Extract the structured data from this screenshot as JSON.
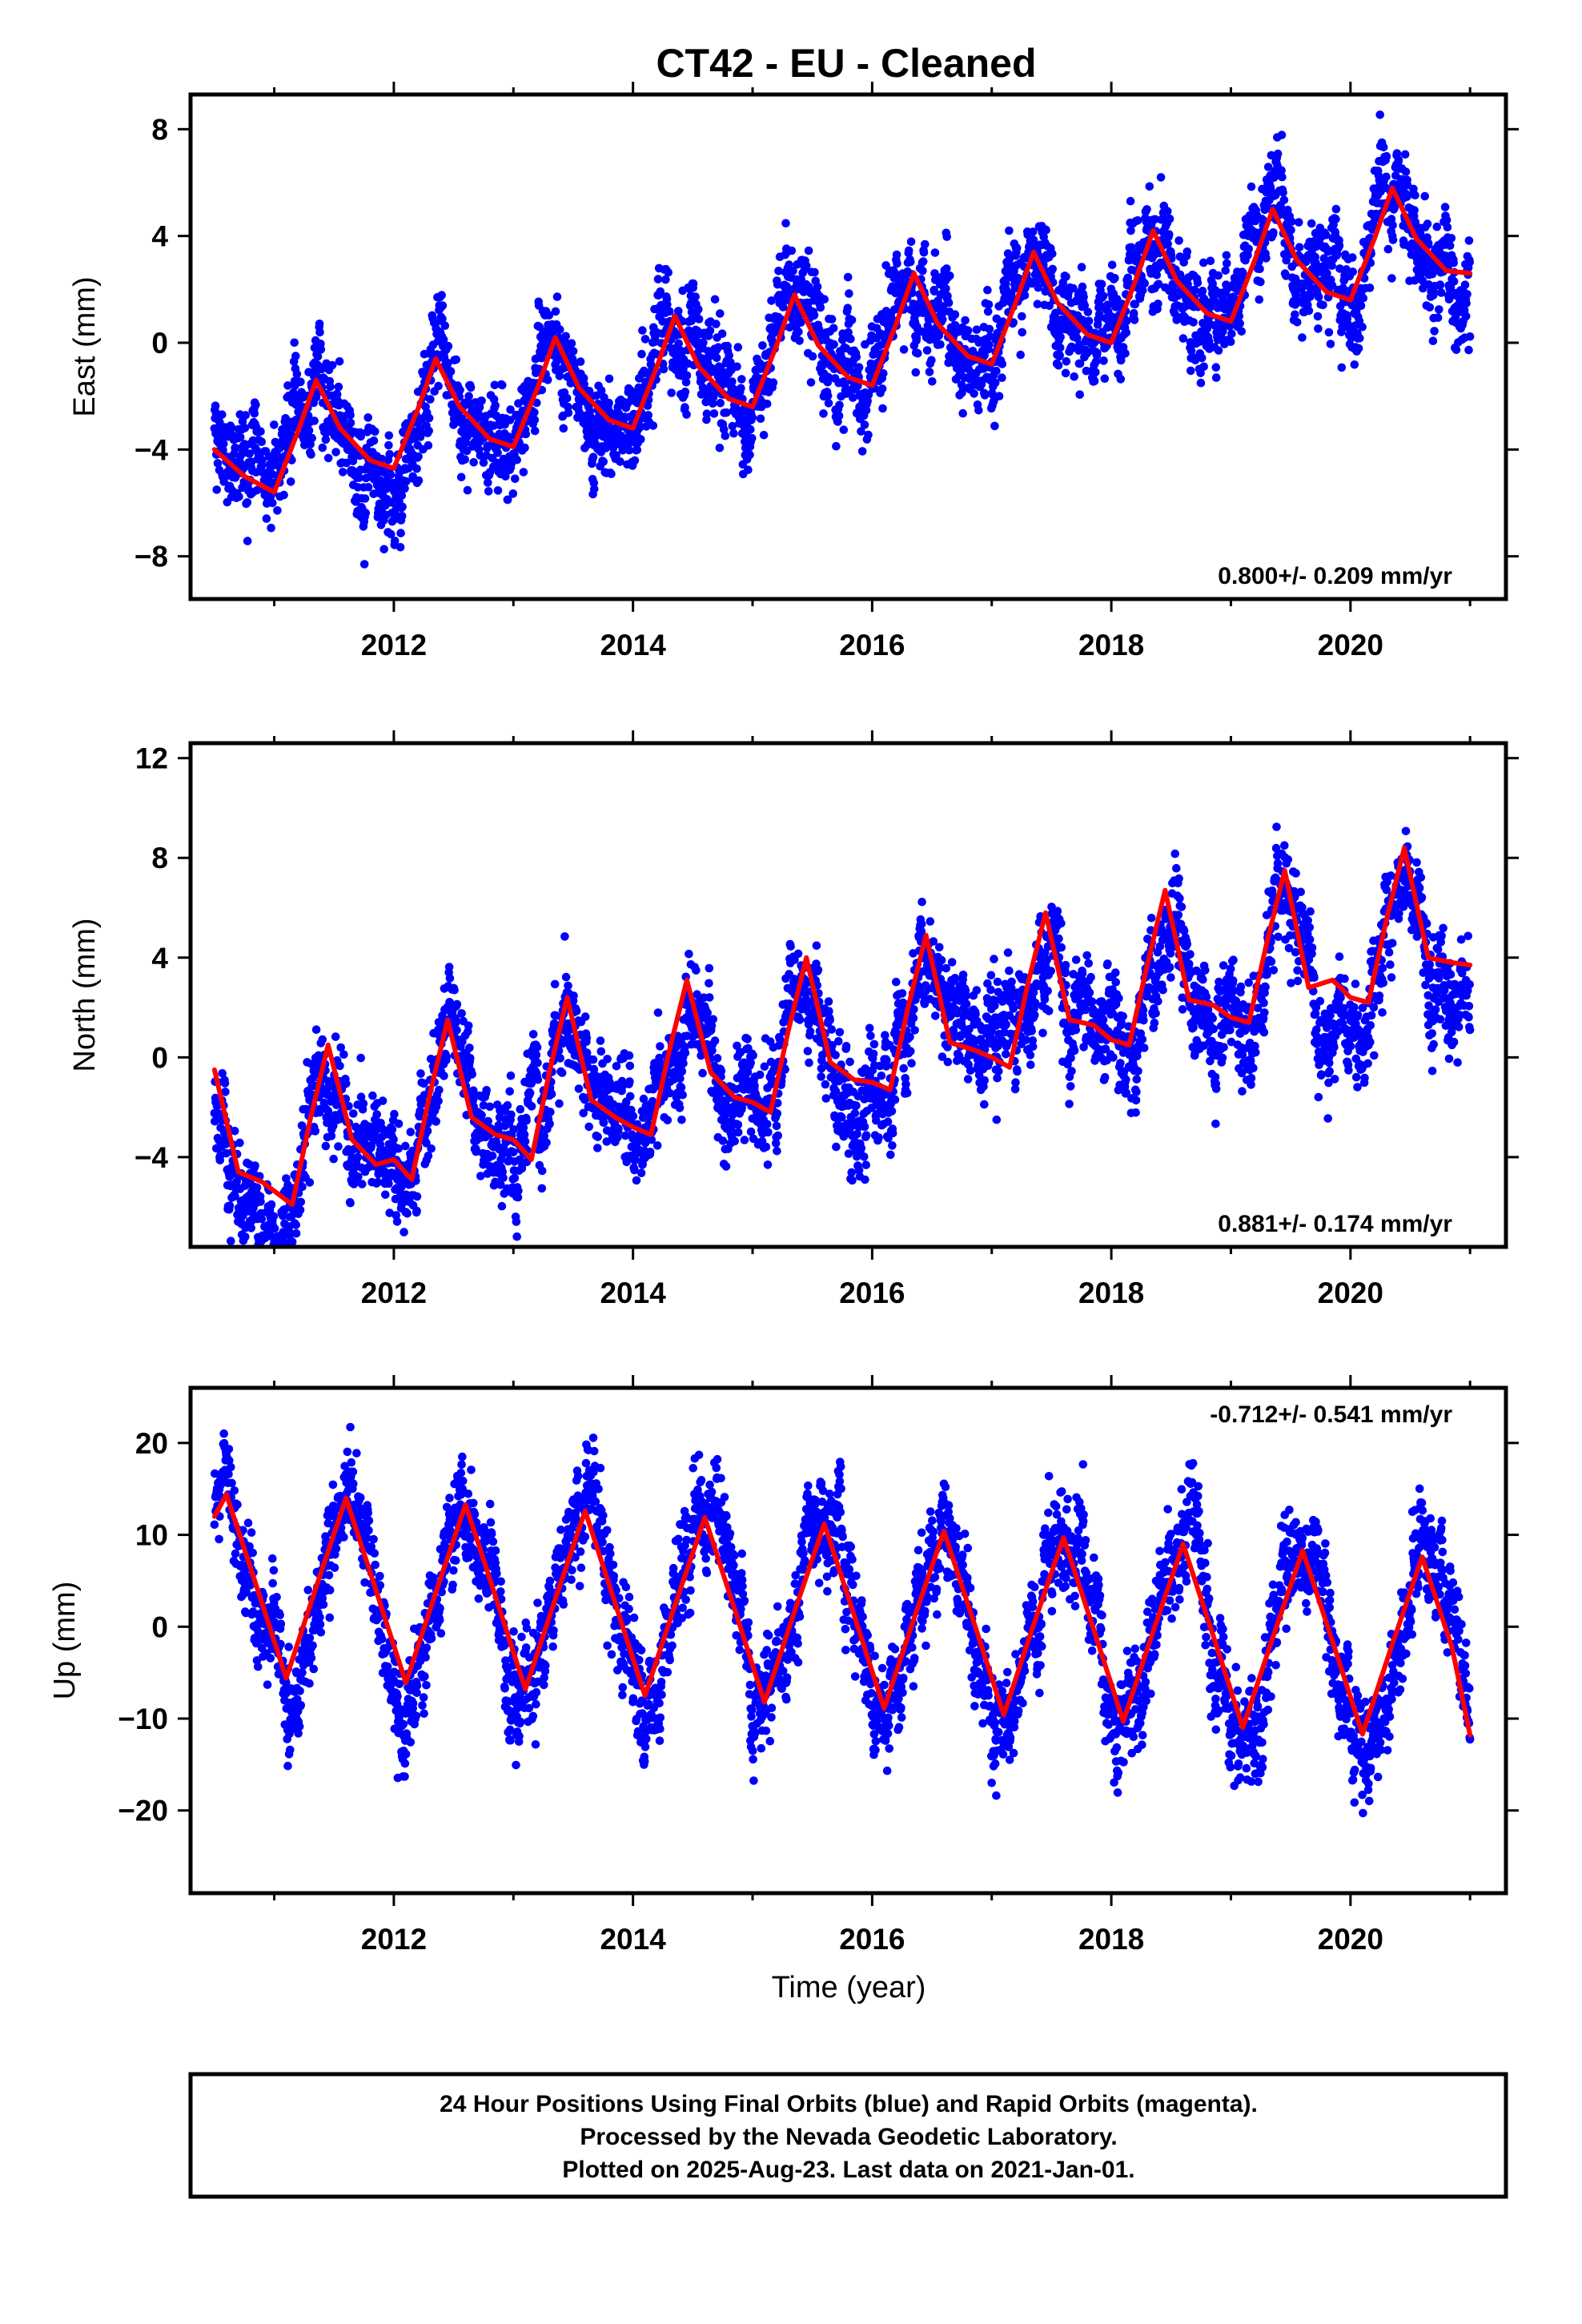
{
  "title": "CT42  - EU - Cleaned",
  "xlabel": "Time (year)",
  "footer": {
    "line1": "24 Hour Positions Using Final Orbits (blue) and Rapid Orbits (magenta).",
    "line2": "Processed by the Nevada Geodetic Laboratory.",
    "line3": "Plotted on 2025-Aug-23. Last data on 2021-Jan-01."
  },
  "colors": {
    "points": "#0000ff",
    "fit": "#ff0000",
    "frame": "#000000"
  },
  "chart_data": [
    {
      "type": "scatter",
      "ylabel": "East (mm)",
      "rate_label": "0.800+/- 0.209 mm/yr",
      "rate_position": "bottom-right",
      "xlim": [
        2010.3,
        2021.3
      ],
      "ylim": [
        -9.6,
        9.3
      ],
      "xticks": [
        2012,
        2014,
        2016,
        2018,
        2020
      ],
      "yticks": [
        -8,
        -4,
        0,
        4,
        8
      ],
      "ytick_labels": [
        "−8",
        "−4",
        "0",
        "4",
        "8"
      ],
      "grid": false,
      "series": [
        {
          "kind": "daily positions (points)",
          "model": {
            "x0": 2010.5,
            "x1": 2021.0,
            "offset": -4.2,
            "trend": 0.8,
            "ann_amp": 1.8,
            "ann_peak": 0.35,
            "semi_amp": 0.6,
            "semi_peak": 0.3,
            "noise": 1.0
          }
        },
        {
          "kind": "fit (line)",
          "x": [
            2010.5,
            2010.75,
            2011.0,
            2011.2,
            2011.35,
            2011.55,
            2011.8,
            2012.0,
            2012.2,
            2012.35,
            2012.55,
            2012.8,
            2013.0,
            2013.2,
            2013.35,
            2013.55,
            2013.8,
            2014.0,
            2014.2,
            2014.35,
            2014.55,
            2014.8,
            2015.0,
            2015.2,
            2015.35,
            2015.55,
            2015.8,
            2016.0,
            2016.2,
            2016.35,
            2016.55,
            2016.8,
            2017.0,
            2017.2,
            2017.35,
            2017.55,
            2017.8,
            2018.0,
            2018.2,
            2018.35,
            2018.55,
            2018.8,
            2019.0,
            2019.2,
            2019.35,
            2019.55,
            2019.8,
            2020.0,
            2020.2,
            2020.35,
            2020.55,
            2020.8,
            2021.0
          ],
          "y": [
            -4.0,
            -5.0,
            -5.6,
            -3.3,
            -1.4,
            -3.2,
            -4.4,
            -4.7,
            -2.5,
            -0.6,
            -2.4,
            -3.6,
            -3.9,
            -1.7,
            0.2,
            -1.7,
            -2.9,
            -3.2,
            -0.9,
            1.0,
            -0.9,
            -2.1,
            -2.4,
            -0.1,
            1.8,
            -0.1,
            -1.3,
            -1.6,
            0.7,
            2.6,
            0.7,
            -0.5,
            -0.8,
            1.5,
            3.4,
            1.5,
            0.3,
            0.0,
            2.3,
            4.2,
            2.3,
            1.1,
            0.8,
            3.1,
            5.0,
            3.1,
            1.9,
            1.6,
            3.9,
            5.8,
            3.9,
            2.7,
            2.6
          ]
        }
      ]
    },
    {
      "type": "scatter",
      "ylabel": "North (mm)",
      "rate_label": "0.881+/- 0.174 mm/yr",
      "rate_position": "bottom-right",
      "xlim": [
        2010.3,
        2021.3
      ],
      "ylim": [
        -7.6,
        12.6
      ],
      "xticks": [
        2012,
        2014,
        2016,
        2018,
        2020
      ],
      "yticks": [
        -4,
        0,
        4,
        8,
        12
      ],
      "ytick_labels": [
        "−4",
        "0",
        "4",
        "8",
        "12"
      ],
      "grid": false,
      "series": [
        {
          "kind": "daily positions (points)",
          "model": {
            "x0": 2010.5,
            "x1": 2021.0,
            "offset": -4.4,
            "trend": 0.88,
            "ann_amp": 2.5,
            "ann_peak": 0.47,
            "semi_amp": 0.7,
            "semi_peak": 0.45,
            "noise": 1.1
          }
        },
        {
          "kind": "fit (line)",
          "x": [
            2010.5,
            2010.7,
            2010.9,
            2011.15,
            2011.3,
            2011.45,
            2011.65,
            2011.85,
            2012.0,
            2012.15,
            2012.3,
            2012.45,
            2012.65,
            2012.85,
            2013.0,
            2013.15,
            2013.3,
            2013.45,
            2013.65,
            2013.85,
            2014.0,
            2014.15,
            2014.3,
            2014.45,
            2014.65,
            2014.85,
            2015.0,
            2015.15,
            2015.3,
            2015.45,
            2015.65,
            2015.85,
            2016.0,
            2016.15,
            2016.3,
            2016.45,
            2016.65,
            2016.85,
            2017.0,
            2017.15,
            2017.3,
            2017.45,
            2017.65,
            2017.85,
            2018.0,
            2018.15,
            2018.3,
            2018.45,
            2018.65,
            2018.85,
            2019.0,
            2019.15,
            2019.3,
            2019.45,
            2019.65,
            2019.85,
            2020.0,
            2020.15,
            2020.3,
            2020.45,
            2020.65,
            2020.85,
            2021.0
          ],
          "y": [
            -0.5,
            -4.6,
            -5.0,
            -5.9,
            -2.5,
            0.5,
            -3.3,
            -4.3,
            -4.1,
            -4.9,
            -1.5,
            1.5,
            -2.4,
            -3.1,
            -3.3,
            -4.1,
            -0.6,
            2.4,
            -1.7,
            -2.4,
            -2.8,
            -3.1,
            0.2,
            3.1,
            -0.6,
            -1.6,
            -1.8,
            -2.2,
            1.1,
            4.0,
            -0.2,
            -0.9,
            -1.0,
            -1.3,
            2.0,
            4.9,
            0.6,
            0.3,
            0.0,
            -0.4,
            2.9,
            5.8,
            1.5,
            1.3,
            0.7,
            0.5,
            3.7,
            6.7,
            2.3,
            2.1,
            1.6,
            1.4,
            4.6,
            7.5,
            2.8,
            3.1,
            2.4,
            2.2,
            5.5,
            8.4,
            4.0,
            3.8,
            3.7
          ]
        }
      ]
    },
    {
      "type": "scatter",
      "ylabel": "Up (mm)",
      "rate_label": "-0.712+/- 0.541 mm/yr",
      "rate_position": "top-right",
      "xlim": [
        2010.3,
        2021.3
      ],
      "ylim": [
        -29,
        26
      ],
      "xticks": [
        2012,
        2014,
        2016,
        2018,
        2020
      ],
      "yticks": [
        -20,
        -10,
        0,
        10,
        20
      ],
      "ytick_labels": [
        "−20",
        "−10",
        "0",
        "10",
        "20"
      ],
      "grid": false,
      "series": [
        {
          "kind": "daily positions (points)",
          "model": {
            "x0": 2010.5,
            "x1": 2021.0,
            "offset": 4.4,
            "trend": -0.7,
            "ann_amp": 10.0,
            "ann_peak": 0.6,
            "semi_amp": 0.0,
            "semi_peak": 0.0,
            "noise": 3.0
          }
        },
        {
          "kind": "fit (line)",
          "x": [
            2010.5,
            2010.6,
            2010.85,
            2011.1,
            2011.35,
            2011.6,
            2011.85,
            2012.1,
            2012.35,
            2012.6,
            2012.85,
            2013.1,
            2013.35,
            2013.6,
            2013.85,
            2014.1,
            2014.35,
            2014.6,
            2014.85,
            2015.1,
            2015.35,
            2015.6,
            2015.85,
            2016.1,
            2016.35,
            2016.6,
            2016.85,
            2017.1,
            2017.35,
            2017.6,
            2017.85,
            2018.1,
            2018.35,
            2018.6,
            2018.85,
            2019.1,
            2019.35,
            2019.6,
            2019.85,
            2020.1,
            2020.35,
            2020.6,
            2020.85,
            2021.0
          ],
          "y": [
            12.0,
            14.4,
            4.5,
            -5.6,
            4.3,
            14.0,
            4.0,
            -6.1,
            3.7,
            13.3,
            3.3,
            -6.8,
            3.0,
            12.6,
            2.6,
            -7.5,
            2.3,
            11.9,
            1.9,
            -8.2,
            1.6,
            11.2,
            1.2,
            -8.9,
            0.9,
            10.4,
            0.5,
            -9.6,
            0.2,
            9.7,
            -0.2,
            -10.3,
            -0.5,
            9.0,
            -0.9,
            -11.0,
            -1.2,
            8.3,
            -1.6,
            -11.7,
            -1.9,
            7.6,
            -2.3,
            -11.8
          ]
        }
      ]
    }
  ]
}
